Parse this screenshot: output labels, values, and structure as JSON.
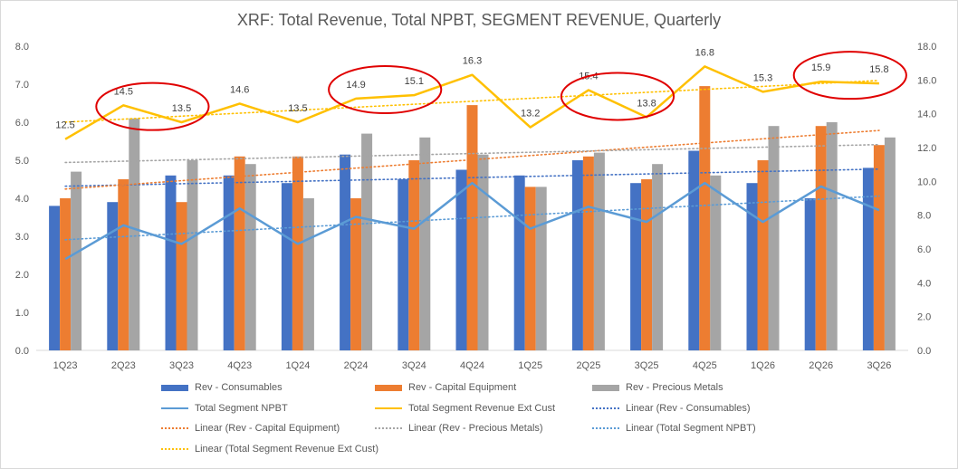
{
  "chart_data": {
    "type": "bar",
    "title": "XRF: Total Revenue, Total NPBT, SEGMENT REVENUE, Quarterly",
    "categories": [
      "1Q23",
      "2Q23",
      "3Q23",
      "4Q23",
      "1Q24",
      "2Q24",
      "3Q24",
      "4Q24",
      "1Q25",
      "2Q25",
      "3Q25",
      "4Q25",
      "1Q26",
      "2Q26",
      "3Q26"
    ],
    "y_left": {
      "ylim": [
        0,
        8
      ],
      "ticks": [
        "0.0",
        "1.0",
        "2.0",
        "3.0",
        "4.0",
        "5.0",
        "6.0",
        "7.0",
        "8.0"
      ]
    },
    "y_right": {
      "ylim": [
        0,
        18
      ],
      "ticks": [
        "0.0",
        "2.0",
        "4.0",
        "6.0",
        "8.0",
        "10.0",
        "12.0",
        "14.0",
        "16.0",
        "18.0"
      ]
    },
    "series": [
      {
        "name": "Rev - Consumables",
        "kind": "bar",
        "axis": "left",
        "color": "#4472C4",
        "values": [
          3.8,
          3.9,
          4.6,
          4.6,
          4.4,
          5.15,
          4.5,
          4.75,
          4.6,
          5.0,
          4.4,
          5.25,
          4.4,
          4.0,
          4.8
        ]
      },
      {
        "name": "Rev - Capital Equipment",
        "kind": "bar",
        "axis": "left",
        "color": "#ED7D31",
        "values": [
          4.0,
          4.5,
          3.9,
          5.1,
          5.1,
          4.0,
          5.0,
          6.45,
          4.3,
          5.1,
          4.5,
          6.95,
          5.0,
          5.9,
          5.4
        ]
      },
      {
        "name": "Rev - Precious Metals",
        "kind": "bar",
        "axis": "left",
        "color": "#A5A5A5",
        "values": [
          4.7,
          6.1,
          5.0,
          4.9,
          4.0,
          5.7,
          5.6,
          5.15,
          4.3,
          5.2,
          4.9,
          4.6,
          5.9,
          6.0,
          5.6
        ]
      },
      {
        "name": "Total Segment NPBT",
        "kind": "line",
        "axis": "right",
        "color": "#5B9BD5",
        "values": [
          5.4,
          7.4,
          6.3,
          8.4,
          6.3,
          7.9,
          7.2,
          9.9,
          7.2,
          8.5,
          7.6,
          9.9,
          7.6,
          9.7,
          8.3
        ]
      },
      {
        "name": "Total Segment Revenue Ext Cust",
        "kind": "line",
        "axis": "right",
        "color": "#FFC000",
        "values": [
          12.5,
          14.5,
          13.5,
          14.6,
          13.5,
          14.9,
          15.1,
          16.3,
          13.2,
          15.4,
          13.8,
          16.8,
          15.3,
          15.9,
          15.8
        ],
        "labels": [
          "12.5",
          "14.5",
          "13.5",
          "14.6",
          "13.5",
          "14.9",
          "15.1",
          "16.3",
          "13.2",
          "15.4",
          "13.8",
          "16.8",
          "15.3",
          "15.9",
          "15.8"
        ]
      }
    ],
    "trendlines": [
      {
        "name": "Linear (Rev - Consumables)",
        "of": 0,
        "color": "#4472C4"
      },
      {
        "name": "Linear (Rev - Capital Equipment)",
        "of": 1,
        "color": "#ED7D31"
      },
      {
        "name": "Linear (Rev - Precious Metals)",
        "of": 2,
        "color": "#A5A5A5"
      },
      {
        "name": "Linear (Total Segment NPBT)",
        "of": 3,
        "color": "#5B9BD5"
      },
      {
        "name": "Linear (Total Segment Revenue Ext Cust)",
        "of": 4,
        "color": "#FFC000"
      }
    ],
    "annotations": {
      "type": "ellipse",
      "color": "#E00000",
      "highlighted_categories": [
        [
          "2Q23",
          "3Q23"
        ],
        [
          "2Q24",
          "3Q24"
        ],
        [
          "2Q25",
          "3Q25"
        ],
        [
          "2Q26",
          "3Q26"
        ]
      ]
    },
    "grid": false,
    "legend_position": "bottom"
  }
}
